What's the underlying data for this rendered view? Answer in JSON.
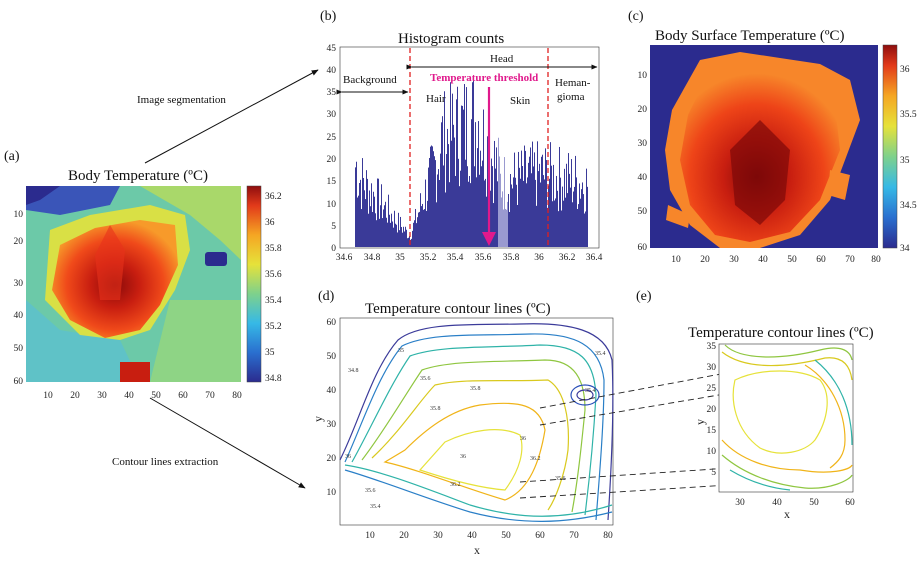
{
  "panels": {
    "a": {
      "letter": "(a)",
      "title": "Body Temperature (ºC)",
      "xticks": [
        "10",
        "20",
        "30",
        "40",
        "50",
        "60",
        "70",
        "80"
      ],
      "yticks": [
        "10",
        "20",
        "30",
        "40",
        "50",
        "60"
      ],
      "cbar_ticks": [
        "36.2",
        "36",
        "35.8",
        "35.6",
        "35.4",
        "35.2",
        "35",
        "34.8"
      ]
    },
    "b": {
      "letter": "(b)",
      "title": "Histogram counts",
      "yticks": [
        "0",
        "5",
        "10",
        "15",
        "20",
        "25",
        "30",
        "35",
        "40",
        "45"
      ],
      "xticks": [
        "34.6",
        "34.8",
        "35",
        "35.2",
        "35.4",
        "35.6",
        "35.8",
        "36",
        "36.2",
        "36.4"
      ],
      "background": "Background",
      "head": "Head",
      "hair": "Hair",
      "skin": "Skin",
      "hemangioma_1": "Heman-",
      "hemangioma_2": "gioma",
      "threshold": "Temperature threshold"
    },
    "c": {
      "letter": "(c)",
      "title": "Body Surface Temperature (ºC)",
      "xticks": [
        "10",
        "20",
        "30",
        "40",
        "50",
        "60",
        "70",
        "80"
      ],
      "yticks": [
        "10",
        "20",
        "30",
        "40",
        "50",
        "60"
      ],
      "cbar_ticks": [
        "36",
        "35.5",
        "35",
        "34.5",
        "34"
      ]
    },
    "d": {
      "letter": "(d)",
      "title": "Temperature contour lines (ºC)",
      "xlabel": "x",
      "ylabel": "y",
      "xticks": [
        "10",
        "20",
        "30",
        "40",
        "50",
        "60",
        "70",
        "80"
      ],
      "yticks": [
        "10",
        "20",
        "30",
        "40",
        "50",
        "60"
      ],
      "contour_labels": [
        "34.8",
        "35",
        "35.2",
        "35.4",
        "35.6",
        "35.8",
        "36",
        "36.2"
      ]
    },
    "e": {
      "letter": "(e)",
      "title": "Temperature contour lines (ºC)",
      "xlabel": "x",
      "ylabel": "y",
      "xticks": [
        "30",
        "40",
        "50",
        "60"
      ],
      "yticks": [
        "5",
        "10",
        "15",
        "20",
        "25",
        "30",
        "35"
      ]
    }
  },
  "arrows": {
    "segmentation": "Image segmentation",
    "contour": "Contour lines extraction"
  },
  "colors": {
    "threshold": "#e0198c",
    "dashed": "#e02020",
    "bars": "#3a3a98"
  }
}
